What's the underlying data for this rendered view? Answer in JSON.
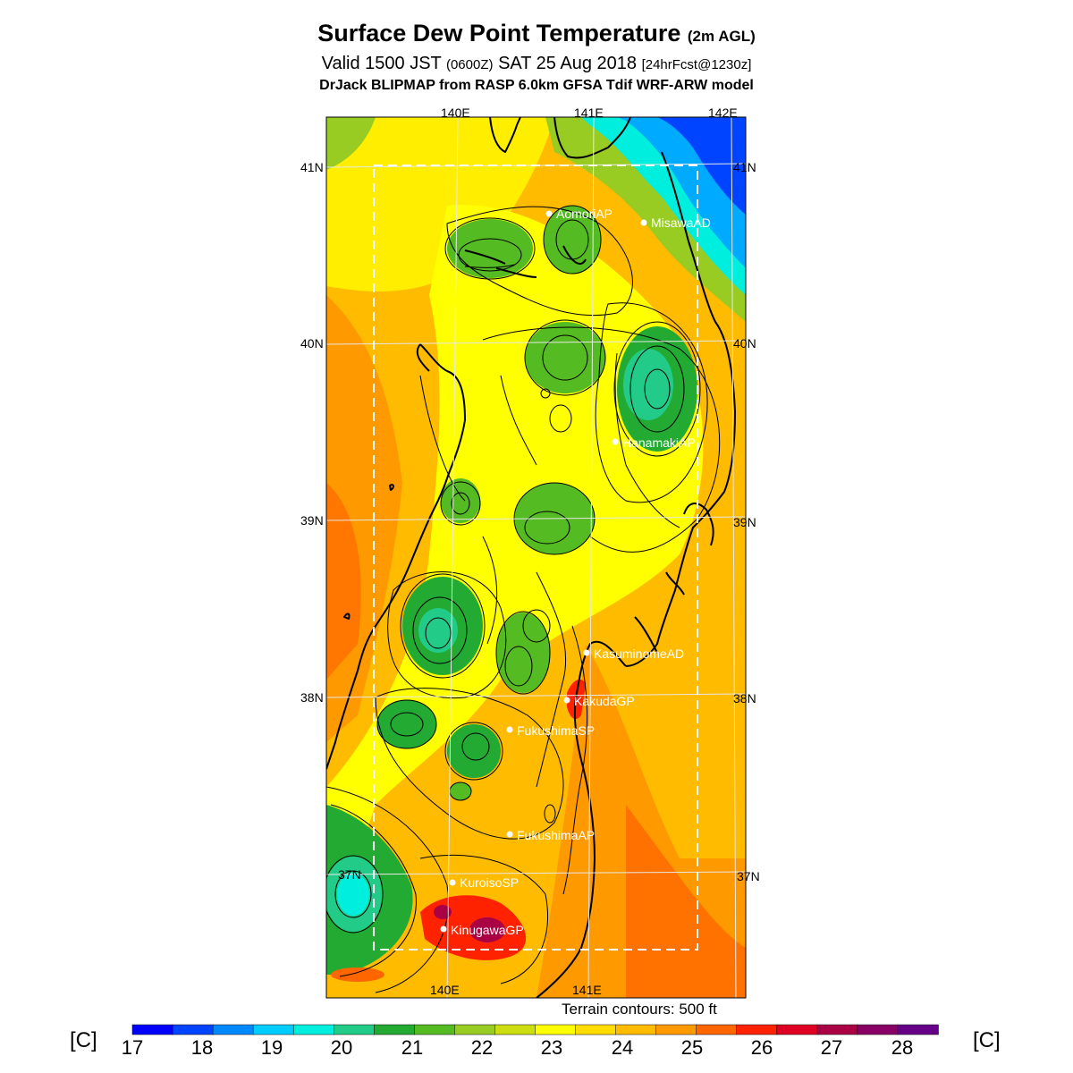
{
  "title": {
    "main": "Surface Dew Point Temperature",
    "main_suffix": "(2m AGL)",
    "valid_prefix": "Valid 1500 JST",
    "valid_utc": "(0600Z)",
    "valid_date": "SAT 25 Aug 2018",
    "forecast_info": "[24hrFcst@1230z]",
    "model_line": "DrJack BLIPMAP from RASP 6.0km GFSA Tdif WRF-ARW model"
  },
  "map": {
    "lon_labels_top": [
      "140E",
      "141E",
      "142E"
    ],
    "lon_labels_bottom": [
      "140E",
      "141E"
    ],
    "lat_labels_left": [
      "41N",
      "40N",
      "39N",
      "38N",
      "37N"
    ],
    "lat_labels_right": [
      "41N",
      "40N",
      "39N",
      "38N",
      "37N"
    ],
    "stations": [
      {
        "name": "AomoriAP"
      },
      {
        "name": "MisawaAD"
      },
      {
        "name": "HanamakiAP"
      },
      {
        "name": "KasuminomeAD"
      },
      {
        "name": "KakudaGP"
      },
      {
        "name": "FukushimaSP"
      },
      {
        "name": "FukushimaAP"
      },
      {
        "name": "KuroisoSP"
      },
      {
        "name": "KinugawaGP"
      }
    ]
  },
  "terrain_note": "Terrain contours: 500 ft",
  "colorbar": {
    "unit": "[C]",
    "tick_labels": [
      "17",
      "18",
      "19",
      "20",
      "21",
      "22",
      "23",
      "24",
      "25",
      "26",
      "27",
      "28"
    ],
    "colors": [
      "#0000ff",
      "#0044ff",
      "#0088ff",
      "#00ccff",
      "#00eedd",
      "#22cc88",
      "#22aa33",
      "#55bb22",
      "#99cc22",
      "#ccdd11",
      "#ffff00",
      "#ffdd00",
      "#ffbb00",
      "#ff9900",
      "#ff6600",
      "#ff2200",
      "#dd0022",
      "#aa0044",
      "#880066",
      "#660088"
    ]
  }
}
